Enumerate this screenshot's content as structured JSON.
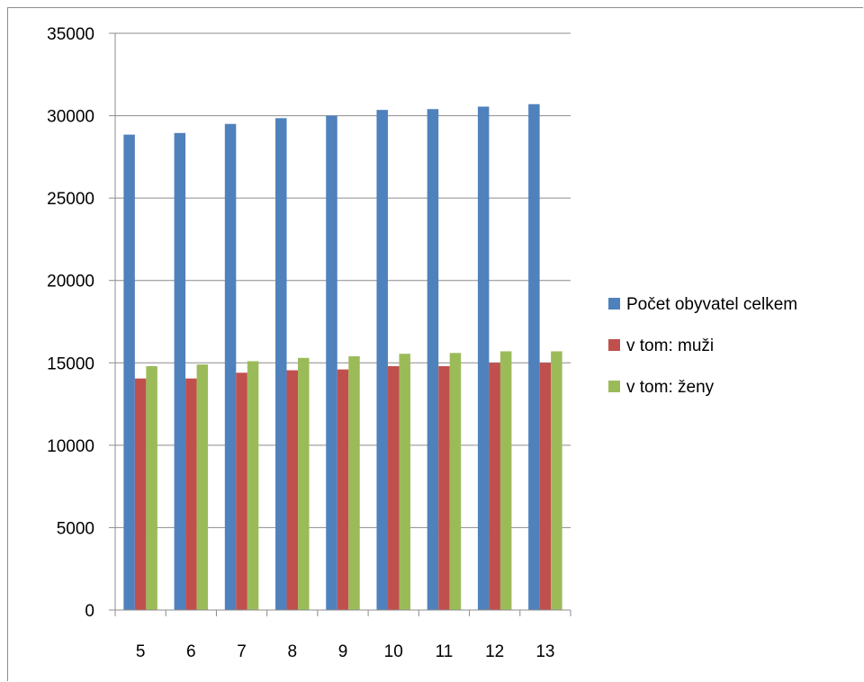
{
  "chart_data": {
    "type": "bar",
    "categories": [
      "5",
      "6",
      "7",
      "8",
      "9",
      "10",
      "11",
      "12",
      "13"
    ],
    "series": [
      {
        "name": "Počet obyvatel celkem",
        "color": "#4F81BD",
        "values": [
          28850,
          28950,
          29500,
          29850,
          30000,
          30350,
          30400,
          30550,
          30700
        ]
      },
      {
        "name": "v tom: muži",
        "color": "#C0504D",
        "values": [
          14050,
          14050,
          14400,
          14550,
          14600,
          14800,
          14800,
          15000,
          15000
        ]
      },
      {
        "name": "v tom: ženy",
        "color": "#9BBB59",
        "values": [
          14800,
          14900,
          15100,
          15300,
          15400,
          15550,
          15600,
          15700,
          15700
        ]
      }
    ],
    "ylim": [
      0,
      35000
    ],
    "yticks": [
      0,
      5000,
      10000,
      15000,
      20000,
      25000,
      30000,
      35000
    ],
    "grid": true,
    "legend": "right",
    "title": "",
    "xlabel": "",
    "ylabel": ""
  }
}
